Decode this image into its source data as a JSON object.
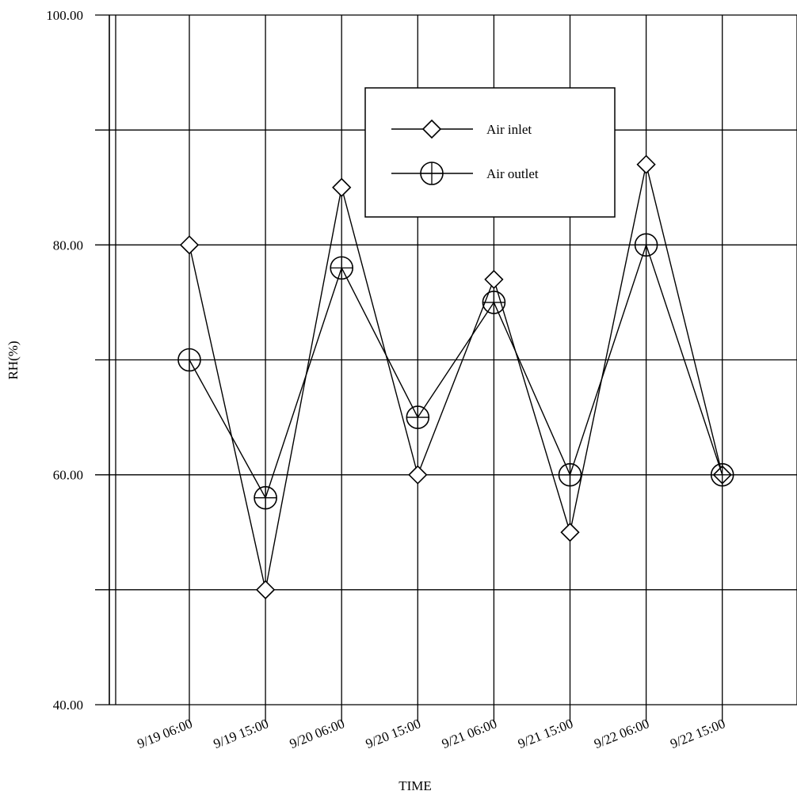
{
  "chart_data": {
    "type": "line",
    "xlabel": "TIME",
    "ylabel": "RH(%)",
    "ylim": [
      40,
      100
    ],
    "y_ticks": [
      40,
      50,
      60,
      70,
      80,
      90,
      100
    ],
    "y_tick_labels": [
      "40.00",
      "",
      "60.00",
      "",
      "80.00",
      "",
      "100.00"
    ],
    "categories": [
      "9/19 06:00",
      "9/19 15:00",
      "9/20 06:00",
      "9/20 15:00",
      "9/21 06:00",
      "9/21 15:00",
      "9/22 06:00",
      "9/22 15:00"
    ],
    "grid": true,
    "legend_position": "top-center",
    "series": [
      {
        "name": "Air inlet",
        "marker": "diamond",
        "values": [
          80,
          50,
          85,
          60,
          77,
          55,
          87,
          60
        ]
      },
      {
        "name": "Air outlet",
        "marker": "circle-plus",
        "values": [
          70,
          58,
          78,
          65,
          75,
          60,
          80,
          60
        ]
      }
    ],
    "colors": {
      "line": "#000000",
      "background": "#ffffff"
    }
  }
}
